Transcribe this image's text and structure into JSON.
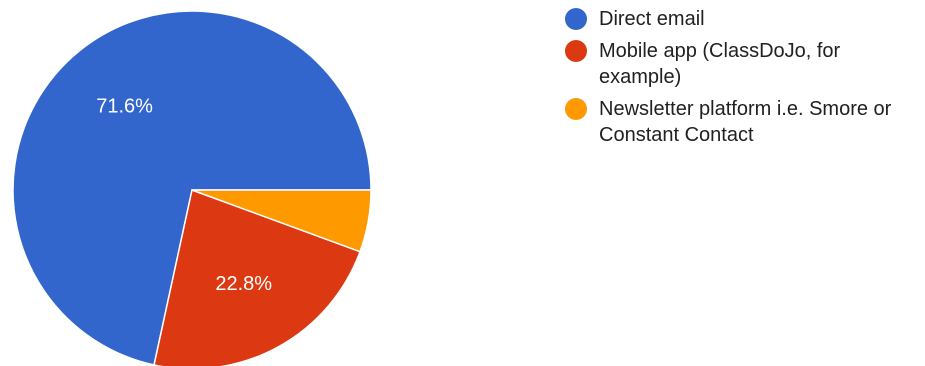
{
  "chart_data": {
    "type": "pie",
    "slices": [
      {
        "label": "Direct email",
        "value": 71.6,
        "color": "#3366cc",
        "data_label": "71.6%"
      },
      {
        "label": "Mobile app (ClassDoJo, for example)",
        "value": 22.8,
        "color": "#dc3912",
        "data_label": "22.8%"
      },
      {
        "label": "Newsletter platform i.e. Smore or Constant Contact",
        "value": 5.6,
        "color": "#ff9900",
        "data_label": ""
      }
    ],
    "legend_position": "right"
  }
}
